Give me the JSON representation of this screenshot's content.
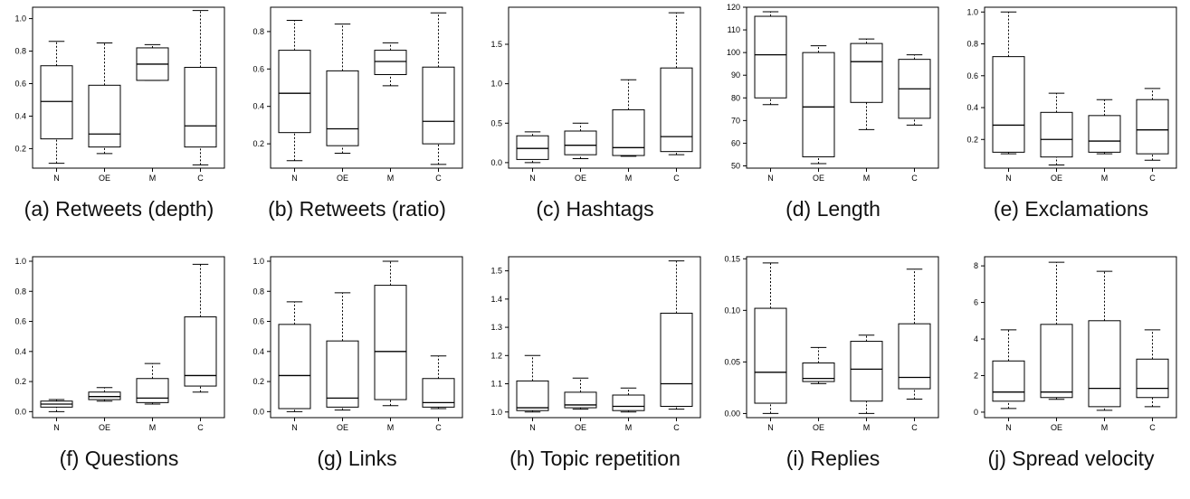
{
  "chart_data": [
    {
      "type": "boxplot",
      "caption": "(a) Retweets (depth)",
      "categories": [
        "N",
        "OE",
        "M",
        "C"
      ],
      "ylim": [
        0.08,
        1.07
      ],
      "yticks": [
        0.2,
        0.4,
        0.6,
        0.8,
        1.0
      ],
      "ytick_labels": [
        "0.2",
        "0.4",
        "0.6",
        "0.8",
        "1.0"
      ],
      "boxes": [
        {
          "whisker_low": 0.11,
          "q1": 0.26,
          "median": 0.49,
          "q3": 0.71,
          "whisker_high": 0.86
        },
        {
          "whisker_low": 0.17,
          "q1": 0.21,
          "median": 0.29,
          "q3": 0.59,
          "whisker_high": 0.85
        },
        {
          "whisker_low": 0.62,
          "q1": 0.62,
          "median": 0.72,
          "q3": 0.82,
          "whisker_high": 0.84
        },
        {
          "whisker_low": 0.1,
          "q1": 0.21,
          "median": 0.34,
          "q3": 0.7,
          "whisker_high": 1.05
        }
      ]
    },
    {
      "type": "boxplot",
      "caption": "(b) Retweets (ratio)",
      "categories": [
        "N",
        "OE",
        "M",
        "C"
      ],
      "ylim": [
        0.07,
        0.93
      ],
      "yticks": [
        0.2,
        0.4,
        0.6,
        0.8
      ],
      "ytick_labels": [
        "0.2",
        "0.4",
        "0.6",
        "0.8"
      ],
      "boxes": [
        {
          "whisker_low": 0.11,
          "q1": 0.26,
          "median": 0.47,
          "q3": 0.7,
          "whisker_high": 0.86
        },
        {
          "whisker_low": 0.15,
          "q1": 0.19,
          "median": 0.28,
          "q3": 0.59,
          "whisker_high": 0.84
        },
        {
          "whisker_low": 0.51,
          "q1": 0.57,
          "median": 0.64,
          "q3": 0.7,
          "whisker_high": 0.74
        },
        {
          "whisker_low": 0.09,
          "q1": 0.2,
          "median": 0.32,
          "q3": 0.61,
          "whisker_high": 0.9
        }
      ]
    },
    {
      "type": "boxplot",
      "caption": "(c) Hashtags",
      "categories": [
        "N",
        "OE",
        "M",
        "C"
      ],
      "ylim": [
        -0.07,
        1.97
      ],
      "yticks": [
        0.0,
        0.5,
        1.0,
        1.5
      ],
      "ytick_labels": [
        "0.0",
        "0.5",
        "1.0",
        "1.5"
      ],
      "boxes": [
        {
          "whisker_low": 0.0,
          "q1": 0.04,
          "median": 0.18,
          "q3": 0.34,
          "whisker_high": 0.39
        },
        {
          "whisker_low": 0.05,
          "q1": 0.1,
          "median": 0.22,
          "q3": 0.4,
          "whisker_high": 0.5
        },
        {
          "whisker_low": 0.08,
          "q1": 0.09,
          "median": 0.19,
          "q3": 0.67,
          "whisker_high": 1.05
        },
        {
          "whisker_low": 0.1,
          "q1": 0.14,
          "median": 0.33,
          "q3": 1.2,
          "whisker_high": 1.9
        }
      ]
    },
    {
      "type": "boxplot",
      "caption": "(d) Length",
      "categories": [
        "N",
        "OE",
        "M",
        "C"
      ],
      "ylim": [
        49,
        120
      ],
      "yticks": [
        50,
        60,
        70,
        80,
        90,
        100,
        110,
        120
      ],
      "ytick_labels": [
        "50",
        "60",
        "70",
        "80",
        "90",
        "100",
        "110",
        "120"
      ],
      "boxes": [
        {
          "whisker_low": 77,
          "q1": 80,
          "median": 99,
          "q3": 116,
          "whisker_high": 118
        },
        {
          "whisker_low": 51,
          "q1": 54,
          "median": 76,
          "q3": 100,
          "whisker_high": 103
        },
        {
          "whisker_low": 66,
          "q1": 78,
          "median": 96,
          "q3": 104,
          "whisker_high": 106
        },
        {
          "whisker_low": 68,
          "q1": 71,
          "median": 84,
          "q3": 97,
          "whisker_high": 99
        }
      ]
    },
    {
      "type": "boxplot",
      "caption": "(e) Exclamations",
      "categories": [
        "N",
        "OE",
        "M",
        "C"
      ],
      "ylim": [
        0.02,
        1.03
      ],
      "yticks": [
        0.2,
        0.4,
        0.6,
        0.8,
        1.0
      ],
      "ytick_labels": [
        "0.2",
        "0.4",
        "0.6",
        "0.8",
        "1.0"
      ],
      "boxes": [
        {
          "whisker_low": 0.11,
          "q1": 0.12,
          "median": 0.29,
          "q3": 0.72,
          "whisker_high": 1.0
        },
        {
          "whisker_low": 0.04,
          "q1": 0.09,
          "median": 0.2,
          "q3": 0.37,
          "whisker_high": 0.49
        },
        {
          "whisker_low": 0.11,
          "q1": 0.12,
          "median": 0.19,
          "q3": 0.35,
          "whisker_high": 0.45
        },
        {
          "whisker_low": 0.07,
          "q1": 0.11,
          "median": 0.26,
          "q3": 0.45,
          "whisker_high": 0.52
        }
      ]
    },
    {
      "type": "boxplot",
      "caption": "(f) Questions",
      "categories": [
        "N",
        "OE",
        "M",
        "C"
      ],
      "ylim": [
        -0.04,
        1.03
      ],
      "yticks": [
        0.0,
        0.2,
        0.4,
        0.6,
        0.8,
        1.0
      ],
      "ytick_labels": [
        "0.0",
        "0.2",
        "0.4",
        "0.6",
        "0.8",
        "1.0"
      ],
      "boxes": [
        {
          "whisker_low": 0.0,
          "q1": 0.03,
          "median": 0.05,
          "q3": 0.07,
          "whisker_high": 0.08
        },
        {
          "whisker_low": 0.07,
          "q1": 0.08,
          "median": 0.1,
          "q3": 0.13,
          "whisker_high": 0.16
        },
        {
          "whisker_low": 0.05,
          "q1": 0.06,
          "median": 0.09,
          "q3": 0.22,
          "whisker_high": 0.32
        },
        {
          "whisker_low": 0.13,
          "q1": 0.17,
          "median": 0.24,
          "q3": 0.63,
          "whisker_high": 0.98
        }
      ]
    },
    {
      "type": "boxplot",
      "caption": "(g) Links",
      "categories": [
        "N",
        "OE",
        "M",
        "C"
      ],
      "ylim": [
        -0.04,
        1.03
      ],
      "yticks": [
        0.0,
        0.2,
        0.4,
        0.6,
        0.8,
        1.0
      ],
      "ytick_labels": [
        "0.0",
        "0.2",
        "0.4",
        "0.6",
        "0.8",
        "1.0"
      ],
      "boxes": [
        {
          "whisker_low": 0.0,
          "q1": 0.02,
          "median": 0.24,
          "q3": 0.58,
          "whisker_high": 0.73
        },
        {
          "whisker_low": 0.01,
          "q1": 0.03,
          "median": 0.09,
          "q3": 0.47,
          "whisker_high": 0.79
        },
        {
          "whisker_low": 0.04,
          "q1": 0.08,
          "median": 0.4,
          "q3": 0.84,
          "whisker_high": 1.0
        },
        {
          "whisker_low": 0.02,
          "q1": 0.03,
          "median": 0.06,
          "q3": 0.22,
          "whisker_high": 0.37
        }
      ]
    },
    {
      "type": "boxplot",
      "caption": "(h) Topic repetition",
      "categories": [
        "N",
        "OE",
        "M",
        "C"
      ],
      "ylim": [
        0.98,
        1.55
      ],
      "yticks": [
        1.0,
        1.1,
        1.2,
        1.3,
        1.4,
        1.5
      ],
      "ytick_labels": [
        "1.0",
        "1.1",
        "1.2",
        "1.3",
        "1.4",
        "1.5"
      ],
      "boxes": [
        {
          "whisker_low": 1.0,
          "q1": 1.005,
          "median": 1.015,
          "q3": 1.11,
          "whisker_high": 1.2
        },
        {
          "whisker_low": 1.01,
          "q1": 1.015,
          "median": 1.025,
          "q3": 1.07,
          "whisker_high": 1.12
        },
        {
          "whisker_low": 1.0,
          "q1": 1.005,
          "median": 1.02,
          "q3": 1.06,
          "whisker_high": 1.085
        },
        {
          "whisker_low": 1.01,
          "q1": 1.02,
          "median": 1.1,
          "q3": 1.35,
          "whisker_high": 1.535
        }
      ]
    },
    {
      "type": "boxplot",
      "caption": "(i) Replies",
      "categories": [
        "N",
        "OE",
        "M",
        "C"
      ],
      "ylim": [
        -0.004,
        0.152
      ],
      "yticks": [
        0.0,
        0.05,
        0.1,
        0.15
      ],
      "ytick_labels": [
        "0.00",
        "0.05",
        "0.10",
        "0.15"
      ],
      "boxes": [
        {
          "whisker_low": 0.0,
          "q1": 0.01,
          "median": 0.04,
          "q3": 0.102,
          "whisker_high": 0.146
        },
        {
          "whisker_low": 0.029,
          "q1": 0.031,
          "median": 0.034,
          "q3": 0.049,
          "whisker_high": 0.064
        },
        {
          "whisker_low": 0.0,
          "q1": 0.012,
          "median": 0.043,
          "q3": 0.07,
          "whisker_high": 0.076
        },
        {
          "whisker_low": 0.014,
          "q1": 0.024,
          "median": 0.035,
          "q3": 0.087,
          "whisker_high": 0.14
        }
      ]
    },
    {
      "type": "boxplot",
      "caption": "(j) Spread velocity",
      "categories": [
        "N",
        "OE",
        "M",
        "C"
      ],
      "ylim": [
        -0.3,
        8.5
      ],
      "yticks": [
        0,
        2,
        4,
        6,
        8
      ],
      "ytick_labels": [
        "0",
        "2",
        "4",
        "6",
        "8"
      ],
      "boxes": [
        {
          "whisker_low": 0.2,
          "q1": 0.6,
          "median": 1.1,
          "q3": 2.8,
          "whisker_high": 4.5
        },
        {
          "whisker_low": 0.7,
          "q1": 0.8,
          "median": 1.1,
          "q3": 4.8,
          "whisker_high": 8.2
        },
        {
          "whisker_low": 0.1,
          "q1": 0.3,
          "median": 1.3,
          "q3": 5.0,
          "whisker_high": 7.7
        },
        {
          "whisker_low": 0.3,
          "q1": 0.8,
          "median": 1.3,
          "q3": 2.9,
          "whisker_high": 4.5
        }
      ]
    }
  ]
}
